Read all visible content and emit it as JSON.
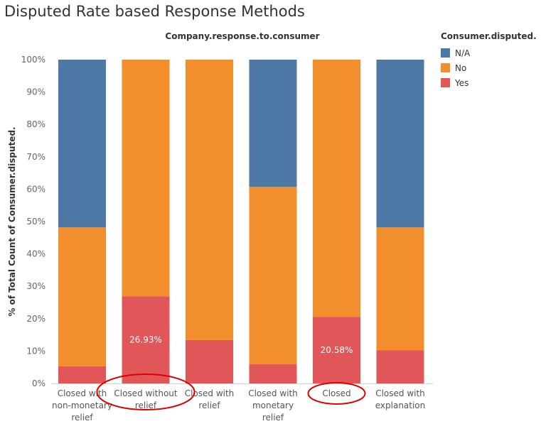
{
  "title": "Disputed Rate based Response Methods",
  "chart_data": {
    "type": "bar",
    "stacked": true,
    "title": "Company.response.to.consumer",
    "xlabel": "",
    "ylabel": "% of Total Count of Consumer.disputed.",
    "ylim": [
      0,
      100
    ],
    "y_ticks": [
      "0%",
      "10%",
      "20%",
      "30%",
      "40%",
      "50%",
      "60%",
      "70%",
      "80%",
      "90%",
      "100%"
    ],
    "categories": [
      "Closed with non-monetary relief",
      "Closed without relief",
      "Closed with relief",
      "Closed with monetary relief",
      "Closed",
      "Closed with explanation"
    ],
    "category_label_lines": [
      [
        "Closed with",
        "non-monetary",
        "relief"
      ],
      [
        "Closed without",
        "relief"
      ],
      [
        "Closed with",
        "relief"
      ],
      [
        "Closed with",
        "monetary",
        "relief"
      ],
      [
        "Closed"
      ],
      [
        "Closed with",
        "explanation"
      ]
    ],
    "series": [
      {
        "name": "Yes",
        "color": "#e15759",
        "values": [
          5.3,
          26.93,
          13.4,
          6.0,
          20.58,
          10.2
        ]
      },
      {
        "name": "No",
        "color": "#f28e2b",
        "values": [
          42.9,
          73.07,
          86.6,
          54.7,
          79.42,
          38.0
        ]
      },
      {
        "name": "N/A",
        "color": "#4e79a7",
        "values": [
          51.8,
          0,
          0,
          39.3,
          0,
          51.8
        ]
      }
    ],
    "data_labels": [
      {
        "category": "Closed without relief",
        "series": "Yes",
        "text": "26.93%"
      },
      {
        "category": "Closed",
        "series": "Yes",
        "text": "20.58%"
      }
    ],
    "highlighted_categories": [
      "Closed without relief",
      "Closed"
    ],
    "highlight_color": "#e00000",
    "grid": false,
    "legend": {
      "title": "Consumer.disputed.",
      "position": "right",
      "entries": [
        {
          "label": "N/A",
          "color": "#4e79a7"
        },
        {
          "label": "No",
          "color": "#f28e2b"
        },
        {
          "label": "Yes",
          "color": "#e15759"
        }
      ]
    }
  }
}
